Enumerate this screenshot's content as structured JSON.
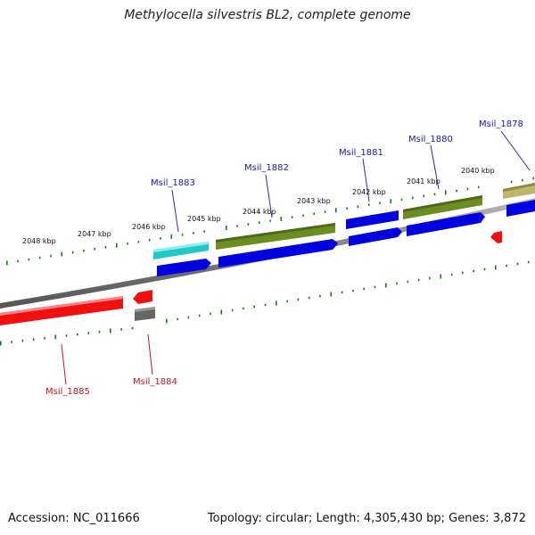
{
  "title": "Methylocella silvestris BL2, complete genome",
  "footer": {
    "accession": "Accession: NC_011666",
    "topology": "Topology: circular; Length: 4,305,430 bp; Genes: 3,872"
  },
  "kbp_labels": [
    "2048 kbp",
    "2047 kbp",
    "2046 kbp",
    "2045 kbp",
    "2044 kbp",
    "2043 kbp",
    "2042 kbp",
    "2041 kbp",
    "2040 kbp"
  ],
  "gene_labels": {
    "forward": [
      "Msil_1883",
      "Msil_1882",
      "Msil_1881",
      "Msil_1880",
      "Msil_1878"
    ],
    "reverse": [
      "Msil_1885",
      "Msil_1884"
    ]
  },
  "colors": {
    "cyan_gene": "#22c8c8",
    "olive_gene": "#6b8e23",
    "khaki_gene": "#bdb76b",
    "blue_cds": "#0000e0",
    "red_gene": "#f01010",
    "gray_gene": "#666666",
    "tick_green": "#1a7a1a",
    "label_blue": "#1a1aa6",
    "label_red": "#c8141e"
  }
}
